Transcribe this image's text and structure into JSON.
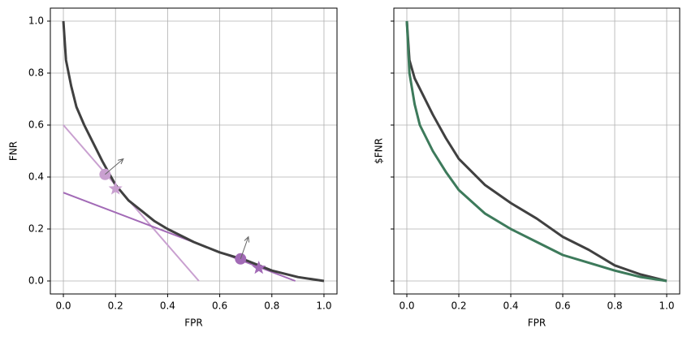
{
  "chart_data": [
    {
      "type": "line",
      "xlabel": "FPR",
      "ylabel": "FNR",
      "xlim": [
        -0.05,
        1.05
      ],
      "ylim": [
        -0.05,
        1.05
      ],
      "grid": true,
      "xticks": [
        {
          "value": 0,
          "label": "0.0"
        },
        {
          "value": 0.2,
          "label": "0.2"
        },
        {
          "value": 0.4,
          "label": "0.4"
        },
        {
          "value": 0.6,
          "label": "0.6"
        },
        {
          "value": 0.8,
          "label": "0.8"
        },
        {
          "value": 1,
          "label": "1.0"
        }
      ],
      "yticks": [
        {
          "value": 0,
          "label": "0.0"
        },
        {
          "value": 0.2,
          "label": "0.2"
        },
        {
          "value": 0.4,
          "label": "0.4"
        },
        {
          "value": 0.6,
          "label": "0.6"
        },
        {
          "value": 0.8,
          "label": "0.8"
        },
        {
          "value": 1,
          "label": "1.0"
        }
      ],
      "series": [
        {
          "type": "line",
          "color": "#c9a0d0",
          "width": 2,
          "x": [
            0,
            0.52
          ],
          "values": [
            0.6,
            0
          ]
        },
        {
          "type": "line",
          "color": "#a26ab6",
          "width": 2,
          "x": [
            0,
            0.89
          ],
          "values": [
            0.34,
            0
          ]
        },
        {
          "type": "line",
          "color": "#404040",
          "width": 3,
          "x": [
            0,
            0.01,
            0.03,
            0.05,
            0.08,
            0.1,
            0.15,
            0.2,
            0.25,
            0.3,
            0.35,
            0.4,
            0.5,
            0.6,
            0.7,
            0.8,
            0.9,
            1
          ],
          "values": [
            1,
            0.85,
            0.75,
            0.67,
            0.6,
            0.56,
            0.46,
            0.37,
            0.31,
            0.27,
            0.23,
            0.2,
            0.15,
            0.11,
            0.08,
            0.04,
            0.015,
            0
          ]
        },
        {
          "type": "scatter",
          "marker": "circle",
          "color": "#c9a0d0",
          "x": [
            0.16
          ],
          "values": [
            0.41
          ]
        },
        {
          "type": "scatter",
          "marker": "star",
          "color": "#c9a0d0",
          "x": [
            0.2
          ],
          "values": [
            0.355
          ]
        },
        {
          "type": "scatter",
          "marker": "circle",
          "color": "#a26ab6",
          "x": [
            0.68
          ],
          "values": [
            0.085
          ]
        },
        {
          "type": "scatter",
          "marker": "star",
          "color": "#a26ab6",
          "x": [
            0.75
          ],
          "values": [
            0.05
          ]
        }
      ],
      "arrows": [
        {
          "color": "#666666",
          "x": [
            0.16,
            0.23
          ],
          "y": [
            0.41,
            0.47
          ]
        },
        {
          "color": "#666666",
          "x": [
            0.68,
            0.71
          ],
          "y": [
            0.085,
            0.17
          ]
        }
      ]
    },
    {
      "type": "line",
      "xlabel": "FPR",
      "ylabel": "$FNR",
      "xlim": [
        -0.05,
        1.05
      ],
      "ylim": [
        -0.05,
        1.05
      ],
      "grid": true,
      "xticks": [
        {
          "value": 0,
          "label": "0.0"
        },
        {
          "value": 0.2,
          "label": "0.2"
        },
        {
          "value": 0.4,
          "label": "0.4"
        },
        {
          "value": 0.6,
          "label": "0.6"
        },
        {
          "value": 0.8,
          "label": "0.8"
        },
        {
          "value": 1,
          "label": "1.0"
        }
      ],
      "yticks": [
        0,
        0.2,
        0.4,
        0.6,
        0.8,
        1
      ],
      "series": [
        {
          "type": "line",
          "color": "#404040",
          "width": 3,
          "x": [
            0,
            0.01,
            0.03,
            0.05,
            0.1,
            0.15,
            0.2,
            0.25,
            0.3,
            0.4,
            0.5,
            0.6,
            0.7,
            0.8,
            0.9,
            1
          ],
          "values": [
            1,
            0.85,
            0.78,
            0.74,
            0.64,
            0.55,
            0.47,
            0.42,
            0.37,
            0.3,
            0.24,
            0.17,
            0.12,
            0.06,
            0.025,
            0
          ]
        },
        {
          "type": "line",
          "color": "#3d7a5b",
          "width": 3,
          "x": [
            0,
            0.01,
            0.03,
            0.05,
            0.1,
            0.15,
            0.2,
            0.3,
            0.4,
            0.5,
            0.6,
            0.7,
            0.8,
            0.9,
            1
          ],
          "values": [
            1,
            0.8,
            0.68,
            0.6,
            0.5,
            0.42,
            0.35,
            0.26,
            0.2,
            0.15,
            0.1,
            0.07,
            0.04,
            0.015,
            0
          ]
        }
      ]
    }
  ]
}
